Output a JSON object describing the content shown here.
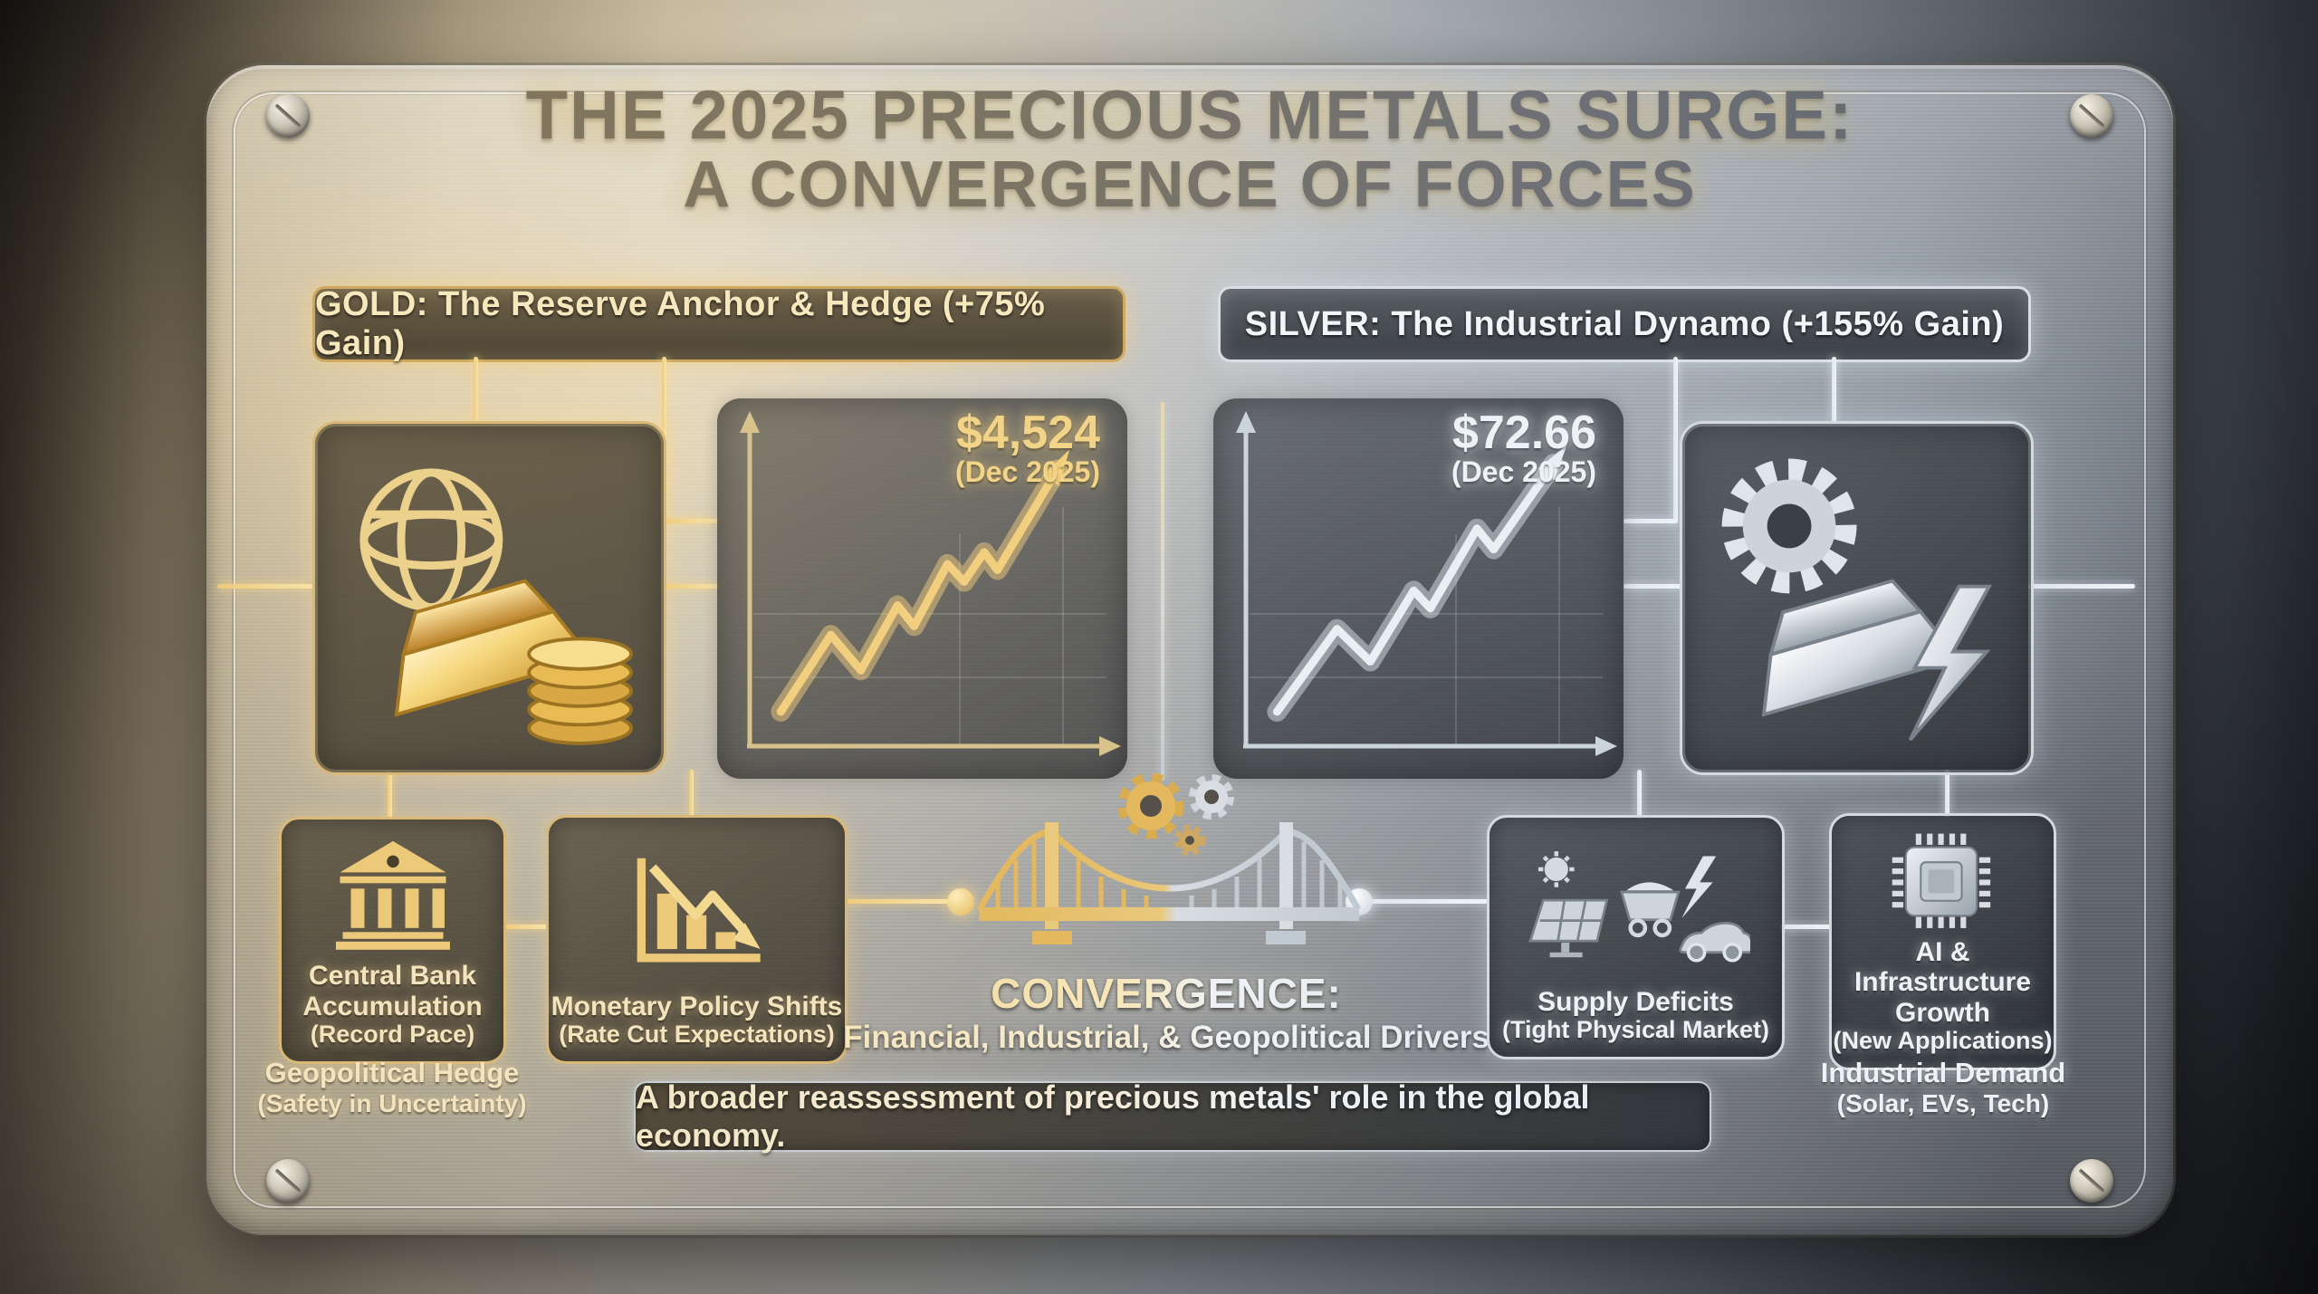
{
  "title": {
    "line1": "THE 2025 PRECIOUS METALS SURGE:",
    "line2": "A CONVERGENCE OF FORCES"
  },
  "gold": {
    "header": "GOLD: The Reserve Anchor & Hedge (+75% Gain)",
    "price": "$4,524",
    "price_date": "(Dec 2025)",
    "icon": "globe-gold-bar-coins",
    "accent_color": "#e7c879",
    "factors": [
      {
        "title": "Central Bank Accumulation",
        "subtitle": "(Record Pace)",
        "icon": "bank-building"
      },
      {
        "title": "Monetary Policy Shifts",
        "subtitle": "(Rate Cut Expectations)",
        "icon": "declining-bars-arrow"
      }
    ],
    "note_title": "Geopolitical Hedge",
    "note_subtitle": "(Safety in Uncertainty)"
  },
  "silver": {
    "header": "SILVER: The Industrial Dynamo (+155% Gain)",
    "price": "$72.66",
    "price_date": "(Dec 2025)",
    "icon": "gear-silver-bar-lightning",
    "accent_color": "#dfe5ea",
    "factors": [
      {
        "title": "Supply Deficits",
        "subtitle": "(Tight Physical Market)",
        "icon": "solar-minecart-bolt-car"
      },
      {
        "title": "AI & Infrastructure Growth",
        "subtitle": "(New Applications)",
        "icon": "cpu-chip"
      }
    ],
    "note_title": "Industrial Demand",
    "note_subtitle": "(Solar, EVs, Tech)"
  },
  "convergence": {
    "title": "CONVERGENCE:",
    "subtitle": "Financial, Industrial, & Geopolitical Drivers",
    "icon": "gold-silver-bridge-with-gears"
  },
  "banner": {
    "text": "A broader reassessment of precious metals' role in the global economy."
  },
  "chart_data": [
    {
      "type": "line",
      "name": "Gold price path 2025",
      "end_label": "$4,524",
      "end_label_date": "(Dec 2025)",
      "gain_pct": 75,
      "color": "#f2cf7e",
      "glow": "rgba(255,215,130,0.45)",
      "axis_color": "#d8c28c",
      "points_norm": [
        [
          0.05,
          0.08
        ],
        [
          0.2,
          0.34
        ],
        [
          0.29,
          0.22
        ],
        [
          0.4,
          0.44
        ],
        [
          0.45,
          0.37
        ],
        [
          0.55,
          0.58
        ],
        [
          0.6,
          0.52
        ],
        [
          0.66,
          0.62
        ],
        [
          0.7,
          0.56
        ],
        [
          0.88,
          0.9
        ]
      ]
    },
    {
      "type": "line",
      "name": "Silver price path 2025",
      "end_label": "$72.66",
      "end_label_date": "(Dec 2025)",
      "gain_pct": 155,
      "color": "#eaeff4",
      "glow": "rgba(230,240,250,0.45)",
      "axis_color": "#ccd4db",
      "points_norm": [
        [
          0.05,
          0.08
        ],
        [
          0.23,
          0.36
        ],
        [
          0.33,
          0.25
        ],
        [
          0.46,
          0.49
        ],
        [
          0.51,
          0.43
        ],
        [
          0.65,
          0.7
        ],
        [
          0.7,
          0.63
        ],
        [
          0.88,
          0.92
        ]
      ]
    }
  ]
}
